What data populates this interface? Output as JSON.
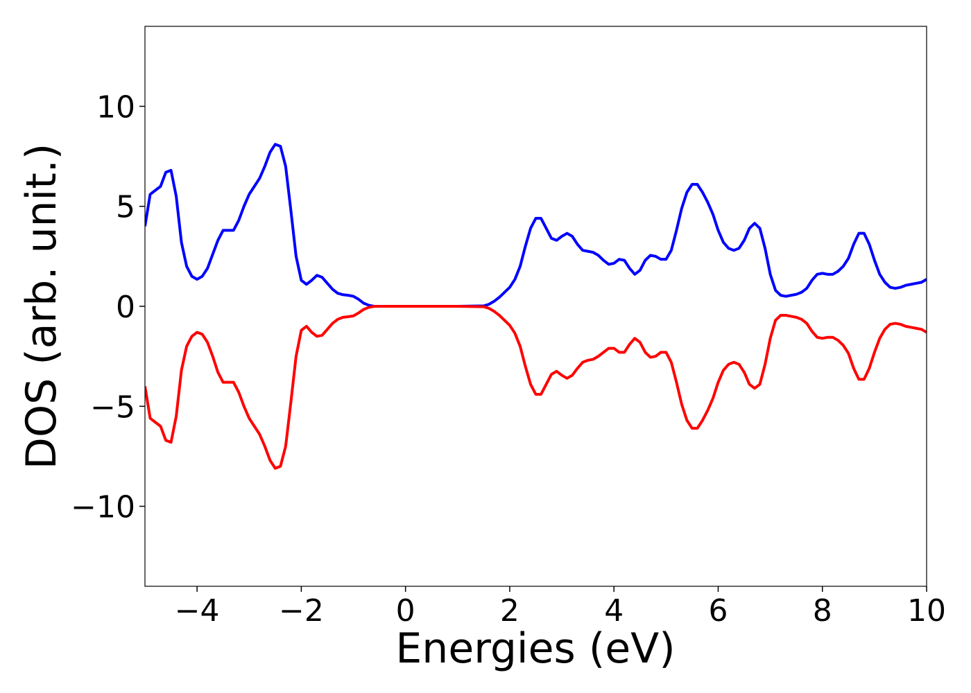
{
  "chart_data": {
    "type": "line",
    "xlabel": "Energies (eV)",
    "ylabel": "DOS (arb. unit.)",
    "xlim": [
      -5,
      10
    ],
    "ylim": [
      -14,
      14
    ],
    "xticks": [
      {
        "value": -4,
        "label": "−4"
      },
      {
        "value": -2,
        "label": "−2"
      },
      0,
      2,
      4,
      6,
      8,
      10
    ],
    "yticks": [
      {
        "value": -10,
        "label": "−10"
      },
      {
        "value": -5,
        "label": "−5"
      },
      0,
      5,
      10
    ],
    "grid": false,
    "x": [
      -5,
      -4.9,
      -4.8,
      -4.7,
      -4.6,
      -4.5,
      -4.4,
      -4.3,
      -4.2,
      -4.1,
      -4,
      -3.9,
      -3.8,
      -3.7,
      -3.6,
      -3.5,
      -3.4,
      -3.3,
      -3.2,
      -3.1,
      -3,
      -2.9,
      -2.8,
      -2.7,
      -2.6,
      -2.5,
      -2.4,
      -2.3,
      -2.2,
      -2.1,
      -2,
      -1.9,
      -1.8,
      -1.7,
      -1.6,
      -1.5,
      -1.4,
      -1.3,
      -1.2,
      -1.1,
      -1,
      -0.9,
      -0.8,
      -0.7,
      -0.6,
      0,
      0.5,
      1,
      1.5,
      1.6,
      1.7,
      1.8,
      1.9,
      2,
      2.1,
      2.2,
      2.3,
      2.4,
      2.5,
      2.6,
      2.7,
      2.8,
      2.9,
      3,
      3.1,
      3.2,
      3.3,
      3.4,
      3.5,
      3.6,
      3.7,
      3.8,
      3.9,
      4,
      4.1,
      4.2,
      4.3,
      4.4,
      4.5,
      4.6,
      4.7,
      4.8,
      4.9,
      5,
      5.1,
      5.2,
      5.3,
      5.4,
      5.5,
      5.6,
      5.7,
      5.8,
      5.9,
      6,
      6.1,
      6.2,
      6.3,
      6.4,
      6.5,
      6.6,
      6.7,
      6.8,
      6.9,
      7,
      7.1,
      7.2,
      7.3,
      7.4,
      7.5,
      7.6,
      7.7,
      7.8,
      7.9,
      8,
      8.1,
      8.2,
      8.3,
      8.4,
      8.5,
      8.6,
      8.7,
      8.8,
      8.9,
      9,
      9.1,
      9.2,
      9.3,
      9.4,
      9.5,
      9.6,
      9.7,
      9.8,
      9.9,
      10
    ],
    "series": [
      {
        "color": "#0000ff",
        "values": [
          4.0,
          5.6,
          5.8,
          6.0,
          6.7,
          6.8,
          5.5,
          3.2,
          2.0,
          1.5,
          1.35,
          1.5,
          1.9,
          2.6,
          3.3,
          3.8,
          3.8,
          3.8,
          4.3,
          5.0,
          5.6,
          6.0,
          6.4,
          7.0,
          7.7,
          8.1,
          8.0,
          7.0,
          4.8,
          2.5,
          1.3,
          1.1,
          1.3,
          1.55,
          1.45,
          1.15,
          0.85,
          0.65,
          0.58,
          0.55,
          0.5,
          0.35,
          0.15,
          0.05,
          0,
          0,
          0,
          0,
          0.02,
          0.1,
          0.25,
          0.45,
          0.7,
          0.95,
          1.35,
          2.0,
          3.0,
          3.9,
          4.4,
          4.4,
          3.9,
          3.4,
          3.3,
          3.5,
          3.65,
          3.5,
          3.1,
          2.8,
          2.75,
          2.7,
          2.55,
          2.3,
          2.1,
          2.15,
          2.35,
          2.3,
          1.9,
          1.6,
          1.8,
          2.3,
          2.55,
          2.5,
          2.35,
          2.35,
          2.8,
          3.8,
          4.9,
          5.7,
          6.1,
          6.1,
          5.7,
          5.2,
          4.6,
          3.8,
          3.2,
          2.9,
          2.8,
          2.9,
          3.3,
          3.9,
          4.15,
          3.9,
          2.9,
          1.6,
          0.8,
          0.55,
          0.5,
          0.55,
          0.6,
          0.7,
          0.9,
          1.3,
          1.6,
          1.65,
          1.6,
          1.6,
          1.75,
          2.0,
          2.4,
          3.1,
          3.65,
          3.65,
          3.1,
          2.3,
          1.6,
          1.2,
          0.95,
          0.9,
          0.95,
          1.05,
          1.1,
          1.15,
          1.2,
          1.35
        ]
      },
      {
        "color": "#ff0000",
        "values": [
          -4.0,
          -5.6,
          -5.8,
          -6.0,
          -6.7,
          -6.8,
          -5.5,
          -3.2,
          -2.0,
          -1.5,
          -1.3,
          -1.4,
          -1.8,
          -2.5,
          -3.3,
          -3.8,
          -3.8,
          -3.8,
          -4.3,
          -5.0,
          -5.6,
          -6.0,
          -6.4,
          -7.0,
          -7.7,
          -8.1,
          -8.0,
          -7.0,
          -4.8,
          -2.5,
          -1.2,
          -1.0,
          -1.3,
          -1.5,
          -1.45,
          -1.15,
          -0.85,
          -0.65,
          -0.55,
          -0.52,
          -0.48,
          -0.33,
          -0.15,
          -0.05,
          0,
          0,
          0,
          0,
          -0.02,
          -0.1,
          -0.25,
          -0.45,
          -0.7,
          -0.95,
          -1.35,
          -2.0,
          -3.0,
          -3.9,
          -4.4,
          -4.4,
          -3.9,
          -3.4,
          -3.25,
          -3.45,
          -3.6,
          -3.45,
          -3.1,
          -2.8,
          -2.7,
          -2.65,
          -2.5,
          -2.3,
          -2.1,
          -2.1,
          -2.3,
          -2.3,
          -1.9,
          -1.6,
          -1.8,
          -2.3,
          -2.55,
          -2.5,
          -2.3,
          -2.3,
          -2.8,
          -3.8,
          -4.9,
          -5.7,
          -6.1,
          -6.1,
          -5.7,
          -5.2,
          -4.6,
          -3.8,
          -3.2,
          -2.9,
          -2.8,
          -2.9,
          -3.3,
          -3.9,
          -4.1,
          -3.9,
          -2.9,
          -1.6,
          -0.7,
          -0.45,
          -0.45,
          -0.5,
          -0.55,
          -0.65,
          -0.85,
          -1.25,
          -1.55,
          -1.6,
          -1.55,
          -1.55,
          -1.7,
          -1.95,
          -2.35,
          -3.1,
          -3.65,
          -3.65,
          -3.1,
          -2.3,
          -1.6,
          -1.15,
          -0.9,
          -0.85,
          -0.9,
          -1.0,
          -1.05,
          -1.1,
          -1.15,
          -1.3
        ]
      }
    ]
  }
}
